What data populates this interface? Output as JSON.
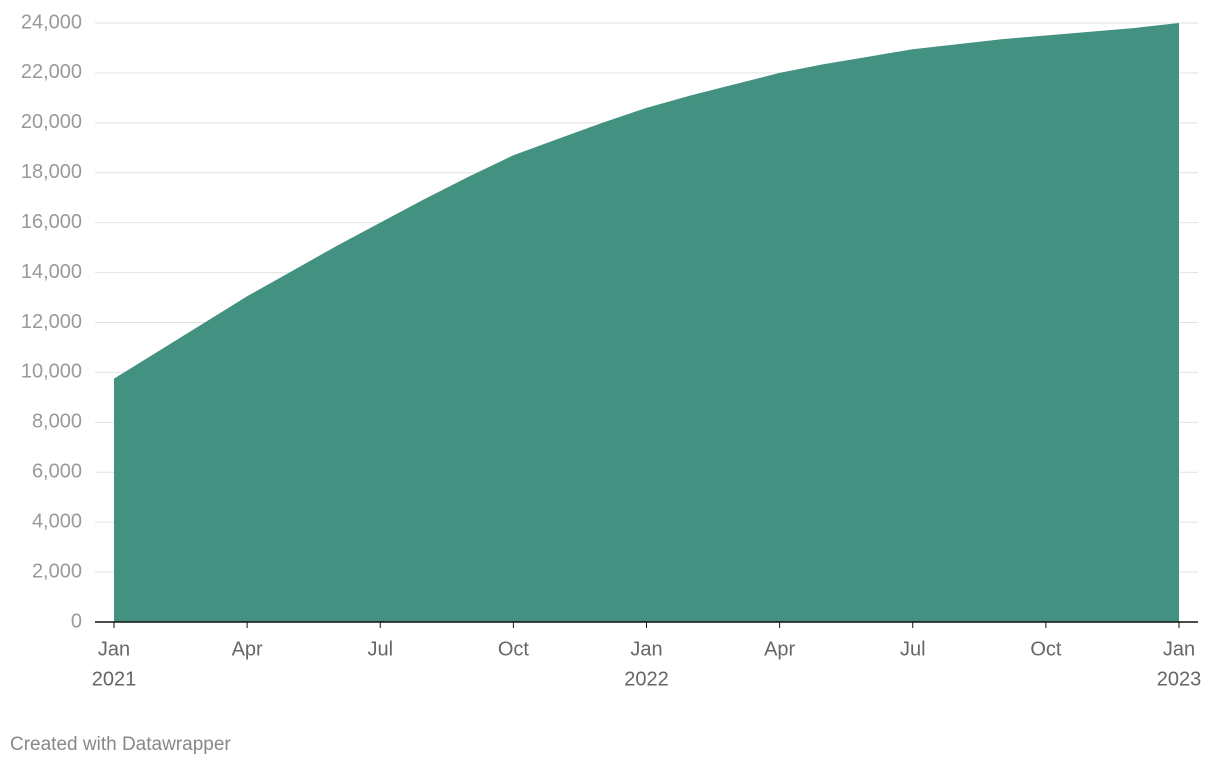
{
  "chart_data": {
    "type": "area",
    "x": [
      "2021-01",
      "2021-02",
      "2021-03",
      "2021-04",
      "2021-05",
      "2021-06",
      "2021-07",
      "2021-08",
      "2021-09",
      "2021-10",
      "2021-11",
      "2021-12",
      "2022-01",
      "2022-02",
      "2022-03",
      "2022-04",
      "2022-05",
      "2022-06",
      "2022-07",
      "2022-08",
      "2022-09",
      "2022-10",
      "2022-11",
      "2022-12",
      "2023-01"
    ],
    "values": [
      9750,
      10850,
      11950,
      13050,
      14050,
      15050,
      16000,
      16950,
      17850,
      18700,
      19350,
      20000,
      20600,
      21100,
      21550,
      22000,
      22350,
      22650,
      22950,
      23150,
      23350,
      23500,
      23650,
      23800,
      24000
    ],
    "color": "#3f8f7d",
    "xlim": [
      "2021-01",
      "2023-01"
    ],
    "xticks": [
      {
        "value": "2021-01",
        "label": "Jan",
        "year": "2021"
      },
      {
        "value": "2021-04",
        "label": "Apr"
      },
      {
        "value": "2021-07",
        "label": "Jul"
      },
      {
        "value": "2021-10",
        "label": "Oct"
      },
      {
        "value": "2022-01",
        "label": "Jan",
        "year": "2022"
      },
      {
        "value": "2022-04",
        "label": "Apr"
      },
      {
        "value": "2022-07",
        "label": "Jul"
      },
      {
        "value": "2022-10",
        "label": "Oct"
      },
      {
        "value": "2023-01",
        "label": "Jan",
        "year": "2023"
      }
    ],
    "ylim": [
      0,
      24000
    ],
    "yticks": [
      0,
      {
        "value": 2000,
        "label": "2,000"
      },
      {
        "value": 4000,
        "label": "4,000"
      },
      {
        "value": 6000,
        "label": "6,000"
      },
      {
        "value": 8000,
        "label": "8,000"
      },
      {
        "value": 10000,
        "label": "10,000"
      },
      {
        "value": 12000,
        "label": "12,000"
      },
      {
        "value": 14000,
        "label": "14,000"
      },
      {
        "value": 16000,
        "label": "16,000"
      },
      {
        "value": 18000,
        "label": "18,000"
      },
      {
        "value": 20000,
        "label": "20,000"
      },
      {
        "value": 22000,
        "label": "22,000"
      },
      {
        "value": 24000,
        "label": "24,000"
      }
    ],
    "grid": true,
    "credit": "Created with Datawrapper"
  }
}
